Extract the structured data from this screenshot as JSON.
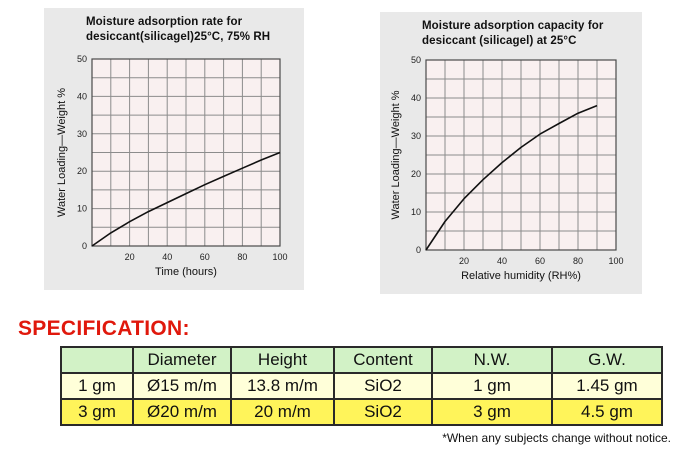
{
  "chart_data": [
    {
      "type": "line",
      "title": "Moisture adsorption rate for\ndesiccant(silicagel)25°C, 75% RH",
      "xlabel": "Time (hours)",
      "ylabel": "Water Loading—Weight %",
      "xlim": [
        0,
        100
      ],
      "ylim": [
        0,
        50
      ],
      "xticks": [
        20,
        40,
        60,
        80,
        100
      ],
      "yticks": [
        0,
        10,
        20,
        30,
        40,
        50
      ],
      "grid": true,
      "series": [
        {
          "x": [
            0,
            10,
            20,
            30,
            40,
            50,
            60,
            70,
            80,
            90,
            100
          ],
          "y": [
            0,
            3.5,
            6.5,
            9.2,
            11.6,
            14.0,
            16.4,
            18.6,
            20.8,
            23.0,
            25.0
          ]
        }
      ]
    },
    {
      "type": "line",
      "title": "Moisture adsorption capacity for\ndesiccant (silicagel) at 25°C",
      "xlabel": "Relative humidity (RH%)",
      "ylabel": "Water Loading—Weight %",
      "xlim": [
        0,
        100
      ],
      "ylim": [
        0,
        50
      ],
      "xticks": [
        20,
        40,
        60,
        80,
        100
      ],
      "yticks": [
        0,
        10,
        20,
        30,
        40,
        50
      ],
      "grid": true,
      "series": [
        {
          "x": [
            0,
            10,
            20,
            30,
            40,
            50,
            60,
            70,
            80,
            90
          ],
          "y": [
            0,
            7.5,
            13.5,
            18.5,
            23.0,
            27.0,
            30.5,
            33.3,
            36.0,
            38.0
          ]
        }
      ]
    }
  ],
  "spec": {
    "title": "SPECIFICATION:",
    "headers": [
      "",
      "Diameter",
      "Height",
      "Content",
      "N.W.",
      "G.W."
    ],
    "rows": [
      [
        "1 gm",
        "Ø15 m/m",
        "13.8 m/m",
        "SiO2",
        "1 gm",
        "1.45 gm"
      ],
      [
        "3 gm",
        "Ø20 m/m",
        "20 m/m",
        "SiO2",
        "3 gm",
        "4.5 gm"
      ]
    ],
    "note": "*When any subjects change without notice."
  }
}
